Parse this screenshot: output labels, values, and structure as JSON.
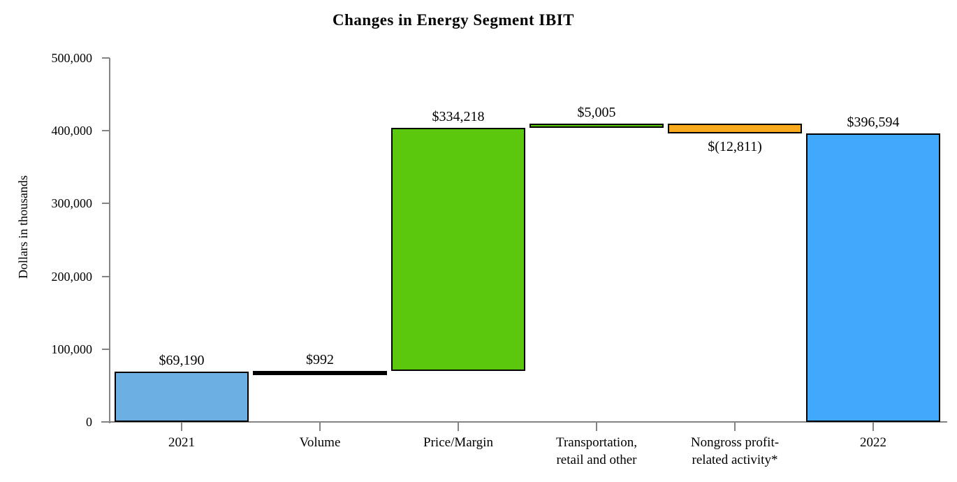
{
  "chart_data": {
    "type": "bar",
    "subtype": "waterfall",
    "title": "Changes in Energy Segment IBIT",
    "ylabel": "Dollars in thousands",
    "xlabel": "",
    "ylim": [
      0,
      500000
    ],
    "grid": false,
    "legend": false,
    "axis_color": "#848484",
    "bar_border_color": "#000000",
    "yticks": [
      {
        "value": 0,
        "label": "0"
      },
      {
        "value": 100000,
        "label": "100,000"
      },
      {
        "value": 200000,
        "label": "200,000"
      },
      {
        "value": 300000,
        "label": "300,000"
      },
      {
        "value": 400000,
        "label": "400,000"
      },
      {
        "value": 500000,
        "label": "500,000"
      }
    ],
    "bars": [
      {
        "category_lines": [
          "2021"
        ],
        "data_label": "$69,190",
        "value": 69190,
        "start": 0,
        "end": 69190,
        "color": "#6CB0E3",
        "data_label_position": "above"
      },
      {
        "category_lines": [
          "Volume"
        ],
        "data_label": "$992",
        "value": 992,
        "start": 69190,
        "end": 70182,
        "color": "#000000",
        "data_label_position": "above"
      },
      {
        "category_lines": [
          "Price/Margin"
        ],
        "data_label": "$334,218",
        "value": 334218,
        "start": 70182,
        "end": 404400,
        "color": "#5CC80D",
        "data_label_position": "above"
      },
      {
        "category_lines": [
          "Transportation,",
          "retail and other"
        ],
        "data_label": "$5,005",
        "value": 5005,
        "start": 404400,
        "end": 409405,
        "color": "#5CC80D",
        "data_label_position": "above"
      },
      {
        "category_lines": [
          "Nongross profit-",
          "related activity*"
        ],
        "data_label": "$(12,811)",
        "value": -12811,
        "start": 409405,
        "end": 396594,
        "color": "#F9A91D",
        "data_label_position": "below"
      },
      {
        "category_lines": [
          "2022"
        ],
        "data_label": "$396,594",
        "value": 396594,
        "start": 0,
        "end": 396594,
        "color": "#40A9FA",
        "data_label_position": "above"
      }
    ]
  }
}
